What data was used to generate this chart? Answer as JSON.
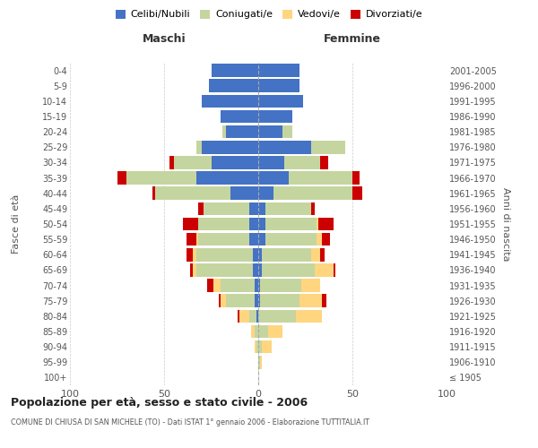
{
  "age_groups": [
    "100+",
    "95-99",
    "90-94",
    "85-89",
    "80-84",
    "75-79",
    "70-74",
    "65-69",
    "60-64",
    "55-59",
    "50-54",
    "45-49",
    "40-44",
    "35-39",
    "30-34",
    "25-29",
    "20-24",
    "15-19",
    "10-14",
    "5-9",
    "0-4"
  ],
  "birth_years": [
    "≤ 1905",
    "1906-1910",
    "1911-1915",
    "1916-1920",
    "1921-1925",
    "1926-1930",
    "1931-1935",
    "1936-1940",
    "1941-1945",
    "1946-1950",
    "1951-1955",
    "1956-1960",
    "1961-1965",
    "1966-1970",
    "1971-1975",
    "1976-1980",
    "1981-1985",
    "1986-1990",
    "1991-1995",
    "1996-2000",
    "2001-2005"
  ],
  "colors": {
    "celibi": "#4472C4",
    "coniugati": "#c5d5a0",
    "vedovi": "#ffd580",
    "divorziati": "#cc0000"
  },
  "maschi": {
    "celibi": [
      0,
      0,
      0,
      0,
      1,
      2,
      2,
      3,
      3,
      5,
      5,
      5,
      15,
      33,
      25,
      30,
      17,
      20,
      30,
      26,
      25
    ],
    "coniugati": [
      0,
      0,
      1,
      2,
      4,
      15,
      18,
      30,
      30,
      27,
      27,
      24,
      40,
      37,
      20,
      3,
      2,
      0,
      0,
      0,
      0
    ],
    "vedovi": [
      0,
      0,
      1,
      2,
      5,
      3,
      4,
      2,
      2,
      1,
      0,
      0,
      0,
      0,
      0,
      0,
      0,
      0,
      0,
      0,
      0
    ],
    "divorziati": [
      0,
      0,
      0,
      0,
      1,
      1,
      3,
      1,
      3,
      5,
      8,
      3,
      1,
      5,
      2,
      0,
      0,
      0,
      0,
      0,
      0
    ]
  },
  "femmine": {
    "celibi": [
      0,
      0,
      0,
      0,
      0,
      1,
      1,
      2,
      2,
      4,
      4,
      4,
      8,
      16,
      14,
      28,
      13,
      18,
      24,
      22,
      22
    ],
    "coniugati": [
      0,
      1,
      2,
      5,
      20,
      21,
      22,
      28,
      26,
      27,
      27,
      24,
      42,
      34,
      19,
      18,
      5,
      0,
      0,
      0,
      0
    ],
    "vedovi": [
      0,
      1,
      5,
      8,
      14,
      12,
      10,
      10,
      5,
      3,
      1,
      0,
      0,
      0,
      0,
      0,
      0,
      0,
      0,
      0,
      0
    ],
    "divorziati": [
      0,
      0,
      0,
      0,
      0,
      2,
      0,
      1,
      2,
      4,
      8,
      2,
      5,
      4,
      4,
      0,
      0,
      0,
      0,
      0,
      0
    ]
  },
  "title_main": "Popolazione per età, sesso e stato civile - 2006",
  "title_sub": "COMUNE DI CHIUSA DI SAN MICHELE (TO) - Dati ISTAT 1° gennaio 2006 - Elaborazione TUTTITALIA.IT",
  "xlabel_left": "Maschi",
  "xlabel_right": "Femmine",
  "ylabel_left": "Fasce di età",
  "ylabel_right": "Anni di nascita",
  "legend_labels": [
    "Celibi/Nubili",
    "Coniugati/e",
    "Vedovi/e",
    "Divorziati/e"
  ],
  "xlim": 100,
  "bg_color": "#ffffff",
  "grid_color": "#cccccc",
  "bar_height": 0.85
}
